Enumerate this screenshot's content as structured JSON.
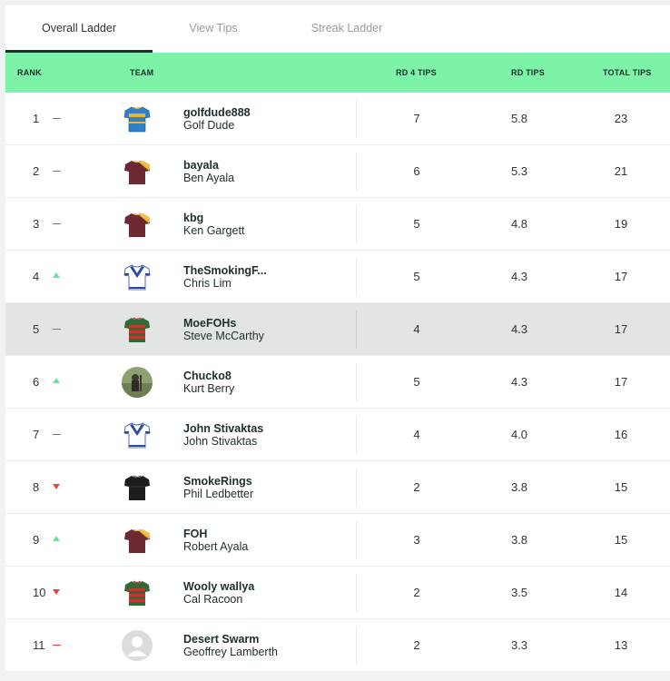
{
  "tabs": [
    {
      "label": "Overall Ladder",
      "active": true
    },
    {
      "label": "View Tips",
      "active": false
    },
    {
      "label": "Streak Ladder",
      "active": false
    }
  ],
  "columns": {
    "rank": "RANK",
    "team": "TEAM",
    "rd4": "RD 4 TIPS",
    "rd": "RD TIPS",
    "total": "TOTAL TIPS"
  },
  "colors": {
    "header_bg": "#7cf3a7",
    "up": "#66e39a",
    "down": "#e5473d",
    "highlight": "#e2e5e3"
  },
  "rows": [
    {
      "rank": "1",
      "movement": "same",
      "avatar": "jersey-blue-gold",
      "username": "golfdude888",
      "name": "Golf Dude",
      "rd4": "7",
      "rd": "5.8",
      "total": "23"
    },
    {
      "rank": "2",
      "movement": "same",
      "avatar": "jersey-maroon-gold",
      "username": "bayala",
      "name": "Ben Ayala",
      "rd4": "6",
      "rd": "5.3",
      "total": "21"
    },
    {
      "rank": "3",
      "movement": "same",
      "avatar": "jersey-maroon-gold",
      "username": "kbg",
      "name": "Ken Gargett",
      "rd4": "5",
      "rd": "4.8",
      "total": "19"
    },
    {
      "rank": "4",
      "movement": "up",
      "avatar": "jersey-white-blue-v",
      "username": "TheSmokingF...",
      "name": "Chris Lim",
      "rd4": "5",
      "rd": "4.3",
      "total": "17"
    },
    {
      "rank": "5",
      "movement": "same",
      "avatar": "jersey-green-red",
      "username": "MoeFOHs",
      "name": "Steve McCarthy",
      "rd4": "4",
      "rd": "4.3",
      "total": "17",
      "highlight": true
    },
    {
      "rank": "6",
      "movement": "up",
      "avatar": "photo-avatar",
      "username": "Chucko8",
      "name": "Kurt Berry",
      "rd4": "5",
      "rd": "4.3",
      "total": "17"
    },
    {
      "rank": "7",
      "movement": "same",
      "avatar": "jersey-white-blue-v",
      "username": "John Stivaktas",
      "name": "John Stivaktas",
      "rd4": "4",
      "rd": "4.0",
      "total": "16"
    },
    {
      "rank": "8",
      "movement": "down",
      "avatar": "jersey-black",
      "username": "SmokeRings",
      "name": "Phil Ledbetter",
      "rd4": "2",
      "rd": "3.8",
      "total": "15"
    },
    {
      "rank": "9",
      "movement": "up",
      "avatar": "jersey-maroon-gold",
      "username": "FOH",
      "name": "Robert Ayala",
      "rd4": "3",
      "rd": "3.8",
      "total": "15"
    },
    {
      "rank": "10",
      "movement": "down",
      "avatar": "jersey-green-red",
      "username": "Wooly wallya",
      "name": "Cal Racoon",
      "rd4": "2",
      "rd": "3.5",
      "total": "14"
    },
    {
      "rank": "11",
      "movement": "new",
      "avatar": "default-user",
      "username": "Desert Swarm",
      "name": "Geoffrey Lamberth",
      "rd4": "2",
      "rd": "3.3",
      "total": "13"
    }
  ]
}
